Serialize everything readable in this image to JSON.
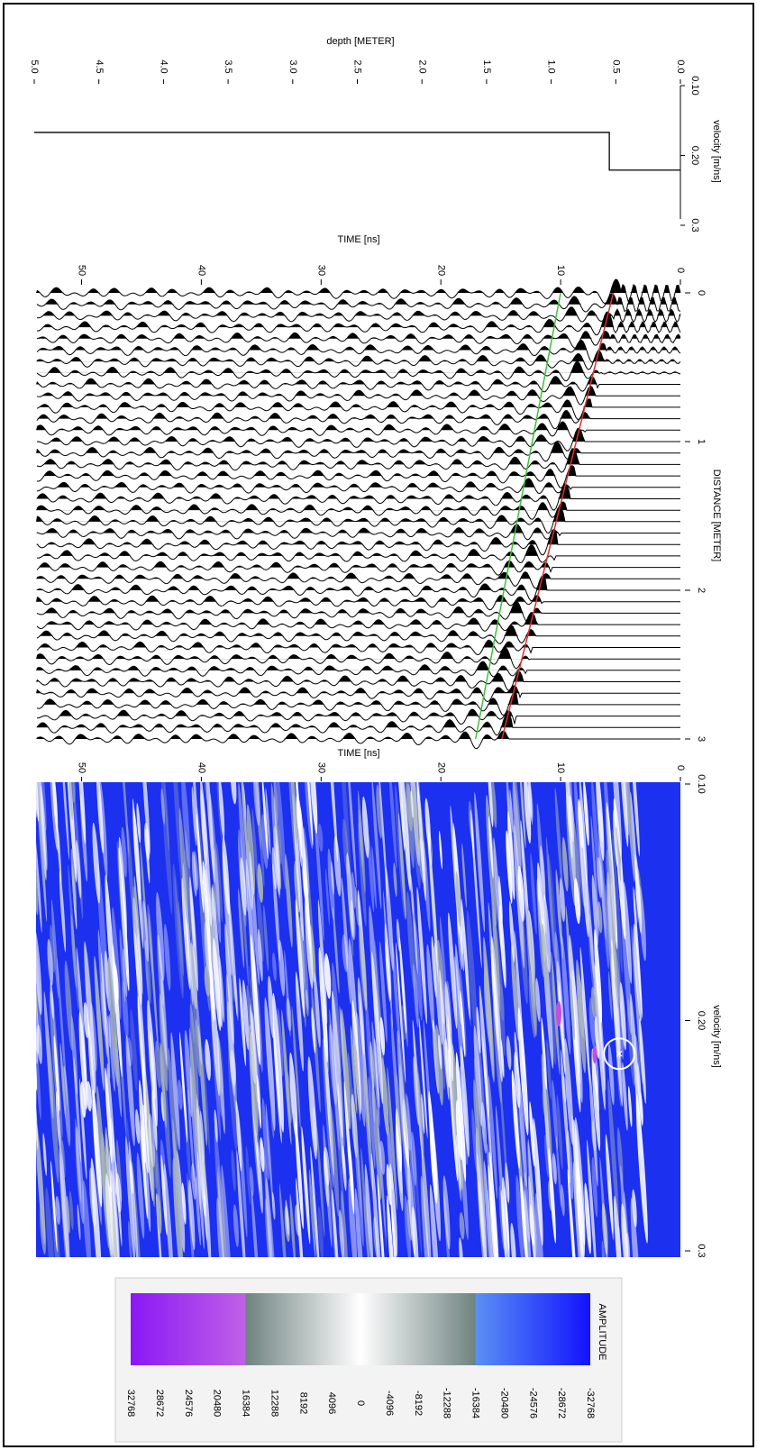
{
  "chart_data": [
    {
      "type": "line",
      "title": "depth [METER]",
      "y_label": "velocity [m/ns]",
      "x": [
        0,
        0.55,
        0.55,
        5
      ],
      "series": [
        {
          "color": "#000000",
          "values": [
            0.221,
            0.221,
            0.167,
            0.167
          ]
        }
      ],
      "xlim": [
        0,
        5
      ],
      "xticks": [
        {
          "value": 0,
          "label": "0.0"
        },
        {
          "value": 0.5,
          "label": "0.5"
        },
        {
          "value": 1,
          "label": "1.0"
        },
        {
          "value": 1.5,
          "label": "1.5"
        },
        {
          "value": 2,
          "label": "2.0"
        },
        {
          "value": 2.5,
          "label": "2.5"
        },
        {
          "value": 3,
          "label": "3.0"
        },
        {
          "value": 3.5,
          "label": "3.5"
        },
        {
          "value": 4,
          "label": "4.0"
        },
        {
          "value": 4.5,
          "label": "4.5"
        },
        {
          "value": 5,
          "label": "5.0"
        }
      ],
      "ylim": [
        0.1,
        0.3
      ],
      "yticks": [
        {
          "value": 0.1,
          "label": "0.10"
        },
        {
          "value": 0.2,
          "label": "0.20"
        },
        {
          "value": 0.3,
          "label": "0.3"
        }
      ]
    },
    {
      "type": "wiggle",
      "x_label": "DISTANCE [METER]",
      "y_label": "TIME [ns]",
      "x": [
        0,
        3
      ],
      "series": [
        {
          "color": "#e03030",
          "values": [
            5.6,
            14.9
          ]
        },
        {
          "color": "#40c040",
          "values": [
            10,
            17.1
          ]
        }
      ],
      "xlim": [
        0,
        3
      ],
      "xticks": [
        0,
        1,
        2,
        3
      ],
      "ylim": [
        0,
        53.8
      ],
      "yticks": [
        0,
        10,
        20,
        30,
        40,
        50
      ]
    },
    {
      "type": "heatmap",
      "x_label": "velocity [m/ns]",
      "y_label": "TIME [ns]",
      "xlim": [
        0.1,
        0.3
      ],
      "xticks": [
        {
          "value": 0.1,
          "label": "0.10"
        },
        {
          "value": 0.2,
          "label": "0.20"
        },
        {
          "value": 0.3,
          "label": "0.3"
        }
      ],
      "ylim": [
        0,
        53.8
      ],
      "yticks": [
        0,
        10,
        20,
        30,
        40,
        50
      ],
      "background": "#1c30f0",
      "marker": {
        "x": 0.214,
        "y": 5.1
      }
    },
    {
      "type": "colorbar",
      "title": "AMPLITUDE",
      "lim": [
        -32768,
        32768
      ],
      "ticks": [
        -32768,
        -28672,
        -24576,
        -20480,
        -16384,
        -12288,
        -8192,
        -4096,
        0,
        4096,
        8192,
        12288,
        16384,
        20480,
        24576,
        28672,
        32768
      ],
      "color_stops": [
        {
          "value": -32768,
          "color": "#1212ff"
        },
        {
          "value": -16384,
          "color": "#5a90f4"
        },
        {
          "value": -16384,
          "color": "#6f8380"
        },
        {
          "value": 0,
          "color": "#ffffff"
        },
        {
          "value": 16384,
          "color": "#6f8380"
        },
        {
          "value": 16384,
          "color": "#c060e8"
        },
        {
          "value": 32768,
          "color": "#8a18f4"
        }
      ]
    }
  ]
}
